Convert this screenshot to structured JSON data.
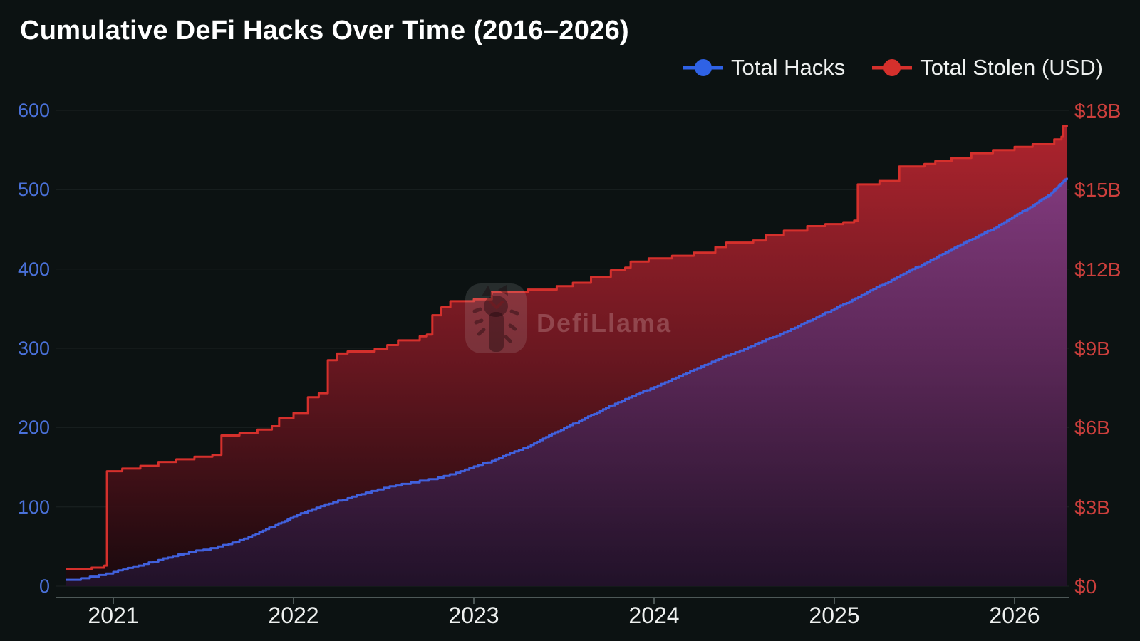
{
  "title": "Cumulative DeFi Hacks Over Time (2016–2026)",
  "legend": [
    {
      "label": "Total Hacks",
      "color": "#2f62e6"
    },
    {
      "label": "Total Stolen (USD)",
      "color": "#d5302c"
    }
  ],
  "watermark": {
    "text": "DefiLlama"
  },
  "colors": {
    "background": "#0c1212",
    "hacks_line": "#4161dd",
    "stolen_line": "#d5302c",
    "left_axis_labels": "#4a71d9",
    "right_axis_labels": "#cc3f3c",
    "x_axis_labels": "#eef0ef",
    "axis_line": "#4d5857",
    "grid_line": "rgba(200,230,228,0.08)"
  },
  "chart_data": {
    "type": "line",
    "title": "Cumulative DeFi Hacks Over Time (2016–2026)",
    "grid": true,
    "legend_position": "top-right",
    "x_axis": {
      "tick_labels": [
        "2021",
        "2022",
        "2023",
        "2024",
        "2025",
        "2026"
      ],
      "tick_years": [
        2021,
        2022,
        2023,
        2024,
        2025,
        2026
      ],
      "domain": [
        2020.735,
        2026.29
      ]
    },
    "left_axis": {
      "series": "Total Hacks",
      "tick_labels": [
        "0",
        "100",
        "200",
        "300",
        "400",
        "500",
        "600"
      ],
      "tick_values": [
        0,
        100,
        200,
        300,
        400,
        500,
        600
      ],
      "range": [
        0,
        600
      ]
    },
    "right_axis": {
      "series": "Total Stolen (USD)",
      "tick_labels": [
        "$0",
        "$3B",
        "$6B",
        "$9B",
        "$12B",
        "$15B",
        "$18B"
      ],
      "tick_values": [
        0,
        3,
        6,
        9,
        12,
        15,
        18
      ],
      "range": [
        0,
        18
      ],
      "unit": "USD billions"
    },
    "series": [
      {
        "name": "Total Hacks",
        "axis": "left",
        "color": "#4161dd",
        "style": "stepped-line-with-area",
        "points": [
          [
            2020.735,
            8
          ],
          [
            2020.82,
            10
          ],
          [
            2020.92,
            14
          ],
          [
            2021.0,
            18
          ],
          [
            2021.08,
            23
          ],
          [
            2021.17,
            28
          ],
          [
            2021.25,
            33
          ],
          [
            2021.33,
            38
          ],
          [
            2021.42,
            43
          ],
          [
            2021.5,
            46
          ],
          [
            2021.58,
            50
          ],
          [
            2021.64,
            53
          ],
          [
            2021.7,
            58
          ],
          [
            2021.75,
            62
          ],
          [
            2021.83,
            70
          ],
          [
            2021.9,
            77
          ],
          [
            2021.95,
            82
          ],
          [
            2022.0,
            88
          ],
          [
            2022.08,
            95
          ],
          [
            2022.15,
            101
          ],
          [
            2022.22,
            106
          ],
          [
            2022.3,
            111
          ],
          [
            2022.4,
            118
          ],
          [
            2022.5,
            124
          ],
          [
            2022.6,
            129
          ],
          [
            2022.7,
            133
          ],
          [
            2022.8,
            137
          ],
          [
            2022.9,
            143
          ],
          [
            2023.0,
            151
          ],
          [
            2023.1,
            158
          ],
          [
            2023.2,
            168
          ],
          [
            2023.3,
            176
          ],
          [
            2023.4,
            188
          ],
          [
            2023.5,
            199
          ],
          [
            2023.6,
            210
          ],
          [
            2023.7,
            221
          ],
          [
            2023.8,
            232
          ],
          [
            2023.9,
            242
          ],
          [
            2024.0,
            251
          ],
          [
            2024.1,
            261
          ],
          [
            2024.2,
            271
          ],
          [
            2024.3,
            281
          ],
          [
            2024.4,
            291
          ],
          [
            2024.5,
            299
          ],
          [
            2024.6,
            309
          ],
          [
            2024.7,
            318
          ],
          [
            2024.8,
            328
          ],
          [
            2024.9,
            339
          ],
          [
            2025.0,
            350
          ],
          [
            2025.1,
            361
          ],
          [
            2025.2,
            373
          ],
          [
            2025.3,
            384
          ],
          [
            2025.4,
            396
          ],
          [
            2025.5,
            407
          ],
          [
            2025.6,
            419
          ],
          [
            2025.7,
            431
          ],
          [
            2025.8,
            442
          ],
          [
            2025.9,
            453
          ],
          [
            2026.0,
            467
          ],
          [
            2026.1,
            480
          ],
          [
            2026.2,
            495
          ],
          [
            2026.29,
            515
          ]
        ]
      },
      {
        "name": "Total Stolen (USD)",
        "axis": "right",
        "color": "#d5302c",
        "style": "stepped-line-with-area",
        "unit": "USD billions",
        "points": [
          [
            2020.735,
            0.65
          ],
          [
            2020.88,
            0.7
          ],
          [
            2020.95,
            0.78
          ],
          [
            2020.965,
            4.35
          ],
          [
            2021.05,
            4.45
          ],
          [
            2021.15,
            4.55
          ],
          [
            2021.25,
            4.7
          ],
          [
            2021.35,
            4.8
          ],
          [
            2021.45,
            4.9
          ],
          [
            2021.55,
            4.97
          ],
          [
            2021.6,
            5.7
          ],
          [
            2021.7,
            5.78
          ],
          [
            2021.8,
            5.92
          ],
          [
            2021.88,
            6.05
          ],
          [
            2021.92,
            6.35
          ],
          [
            2022.0,
            6.55
          ],
          [
            2022.08,
            7.15
          ],
          [
            2022.14,
            7.3
          ],
          [
            2022.19,
            8.55
          ],
          [
            2022.24,
            8.8
          ],
          [
            2022.3,
            8.88
          ],
          [
            2022.45,
            8.97
          ],
          [
            2022.52,
            9.12
          ],
          [
            2022.58,
            9.3
          ],
          [
            2022.7,
            9.45
          ],
          [
            2022.74,
            9.52
          ],
          [
            2022.77,
            10.25
          ],
          [
            2022.82,
            10.55
          ],
          [
            2022.87,
            10.78
          ],
          [
            2023.0,
            10.85
          ],
          [
            2023.1,
            11.12
          ],
          [
            2023.3,
            11.22
          ],
          [
            2023.46,
            11.35
          ],
          [
            2023.55,
            11.48
          ],
          [
            2023.65,
            11.7
          ],
          [
            2023.76,
            11.95
          ],
          [
            2023.84,
            12.05
          ],
          [
            2023.87,
            12.28
          ],
          [
            2023.97,
            12.4
          ],
          [
            2024.1,
            12.5
          ],
          [
            2024.22,
            12.62
          ],
          [
            2024.34,
            12.83
          ],
          [
            2024.4,
            13.0
          ],
          [
            2024.55,
            13.08
          ],
          [
            2024.62,
            13.28
          ],
          [
            2024.72,
            13.45
          ],
          [
            2024.85,
            13.62
          ],
          [
            2024.95,
            13.7
          ],
          [
            2025.05,
            13.77
          ],
          [
            2025.11,
            13.83
          ],
          [
            2025.13,
            15.2
          ],
          [
            2025.25,
            15.33
          ],
          [
            2025.36,
            15.88
          ],
          [
            2025.5,
            15.97
          ],
          [
            2025.56,
            16.08
          ],
          [
            2025.65,
            16.2
          ],
          [
            2025.76,
            16.38
          ],
          [
            2025.88,
            16.5
          ],
          [
            2026.0,
            16.62
          ],
          [
            2026.1,
            16.72
          ],
          [
            2026.22,
            16.9
          ],
          [
            2026.26,
            17.0
          ],
          [
            2026.27,
            17.4
          ],
          [
            2026.29,
            17.45
          ]
        ]
      }
    ]
  }
}
